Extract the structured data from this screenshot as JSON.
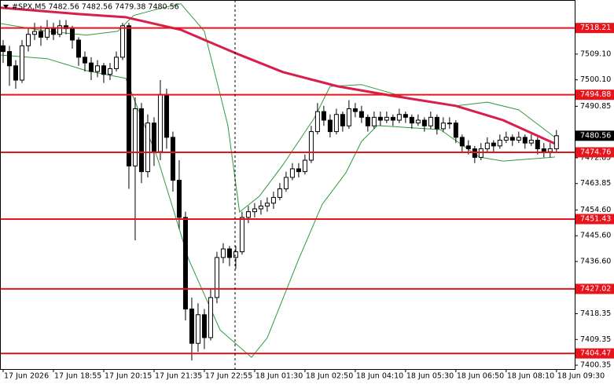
{
  "chart_data": {
    "type": "candlestick",
    "title": "#SPX,M5 7482.56 7482.56 7479.38 7480.56",
    "xlim": [
      -0.5,
      90.9
    ],
    "ylim": [
      7399,
      7528
    ],
    "xticks": [
      {
        "value": 0,
        "label": "17 Jun 2026"
      },
      {
        "value": 8,
        "label": "17 Jun 18:55"
      },
      {
        "value": 16,
        "label": "17 Jun 20:15"
      },
      {
        "value": 24,
        "label": "17 Jun 21:35"
      },
      {
        "value": 32,
        "label": "17 Jun 22:55"
      },
      {
        "value": 40,
        "label": "18 Jun 01:30"
      },
      {
        "value": 48,
        "label": "18 Jun 02:50"
      },
      {
        "value": 56,
        "label": "18 Jun 04:10"
      },
      {
        "value": 64,
        "label": "18 Jun 05:30"
      },
      {
        "value": 72,
        "label": "18 Jun 06:50"
      },
      {
        "value": 80,
        "label": "18 Jun 08:10"
      },
      {
        "value": 88,
        "label": "18 Jun 09:30"
      }
    ],
    "yticks": [
      {
        "value": 7509.1,
        "label": "7509.10"
      },
      {
        "value": 7500.1,
        "label": "7500.10"
      },
      7490.85,
      7472.85,
      7463.85,
      {
        "value": 7454.6,
        "label": "7454.60"
      },
      {
        "value": 7445.6,
        "label": "7445.60"
      },
      {
        "value": 7436.6,
        "label": "7436.60"
      },
      7418.35,
      7409.35,
      7400.35
    ],
    "levels": [
      7518.21,
      7494.88,
      7474.76,
      7451.43,
      7427.02,
      7404.47
    ],
    "level_color": "#e8141c",
    "last_price": 7480.56,
    "up_color": "#ffffff",
    "down_color": "#000000",
    "ohlc": [
      [
        7512,
        7514,
        7506,
        7510
      ],
      [
        7510,
        7512,
        7498,
        7505
      ],
      [
        7505,
        7507,
        7497,
        7500
      ],
      [
        7500,
        7514,
        7499,
        7512
      ],
      [
        7512,
        7518,
        7510,
        7516
      ],
      [
        7516,
        7520,
        7514,
        7517
      ],
      [
        7517,
        7519,
        7512,
        7515
      ],
      [
        7515,
        7521,
        7514,
        7518
      ],
      [
        7518,
        7520,
        7514,
        7516
      ],
      [
        7516,
        7521,
        7515,
        7519
      ],
      [
        7519,
        7521,
        7516,
        7518
      ],
      [
        7518,
        7519,
        7511,
        7514
      ],
      [
        7514,
        7515,
        7505,
        7508
      ],
      [
        7508,
        7510,
        7503,
        7506
      ],
      [
        7506,
        7508,
        7500,
        7503
      ],
      [
        7503,
        7507,
        7501,
        7505
      ],
      [
        7505,
        7506,
        7499,
        7502
      ],
      [
        7502,
        7506,
        7500,
        7504
      ],
      [
        7504,
        7510,
        7503,
        7508
      ],
      [
        7508,
        7520,
        7507,
        7519
      ],
      [
        7519,
        7520,
        7462,
        7470
      ],
      [
        7470,
        7494,
        7444,
        7490
      ],
      [
        7490,
        7492,
        7464,
        7468
      ],
      [
        7468,
        7488,
        7466,
        7485
      ],
      [
        7485,
        7487,
        7470,
        7475
      ],
      [
        7475,
        7500,
        7472,
        7495
      ],
      [
        7495,
        7497,
        7476,
        7480
      ],
      [
        7480,
        7482,
        7461,
        7465
      ],
      [
        7465,
        7472,
        7448,
        7452
      ],
      [
        7452,
        7454,
        7416,
        7420
      ],
      [
        7420,
        7424,
        7402,
        7408
      ],
      [
        7408,
        7422,
        7405,
        7418
      ],
      [
        7418,
        7420,
        7406,
        7410
      ],
      [
        7410,
        7427,
        7409,
        7424
      ],
      [
        7424,
        7440,
        7422,
        7438
      ],
      [
        7438,
        7443,
        7436,
        7441
      ],
      [
        7441,
        7442,
        7435,
        7438
      ],
      [
        7438,
        7442,
        7434,
        7440
      ],
      [
        7440,
        7454,
        7439,
        7452
      ],
      [
        7452,
        7456,
        7450,
        7454
      ],
      [
        7454,
        7457,
        7452,
        7455
      ],
      [
        7455,
        7458,
        7453,
        7456
      ],
      [
        7456,
        7459,
        7454,
        7457
      ],
      [
        7457,
        7461,
        7455,
        7459
      ],
      [
        7459,
        7464,
        7458,
        7462
      ],
      [
        7462,
        7468,
        7461,
        7466
      ],
      [
        7466,
        7471,
        7465,
        7469
      ],
      [
        7469,
        7471,
        7466,
        7468
      ],
      [
        7468,
        7474,
        7467,
        7472
      ],
      [
        7472,
        7484,
        7471,
        7482
      ],
      [
        7482,
        7492,
        7481,
        7489
      ],
      [
        7489,
        7491,
        7484,
        7486
      ],
      [
        7486,
        7488,
        7480,
        7482
      ],
      [
        7482,
        7490,
        7481,
        7488
      ],
      [
        7488,
        7489,
        7482,
        7484
      ],
      [
        7484,
        7493,
        7483,
        7490
      ],
      [
        7490,
        7492,
        7487,
        7489
      ],
      [
        7489,
        7491,
        7485,
        7487
      ],
      [
        7487,
        7488,
        7482,
        7484
      ],
      [
        7484,
        7489,
        7483,
        7487
      ],
      [
        7487,
        7489,
        7484,
        7486
      ],
      [
        7486,
        7489,
        7485,
        7487
      ],
      [
        7487,
        7488,
        7484,
        7486
      ],
      [
        7486,
        7490,
        7485,
        7488
      ],
      [
        7488,
        7489,
        7485,
        7487
      ],
      [
        7487,
        7488,
        7483,
        7485
      ],
      [
        7485,
        7488,
        7484,
        7486
      ],
      [
        7486,
        7487,
        7482,
        7484
      ],
      [
        7484,
        7489,
        7483,
        7487
      ],
      [
        7487,
        7488,
        7481,
        7483
      ],
      [
        7483,
        7487,
        7482,
        7485
      ],
      [
        7485,
        7487,
        7483,
        7485
      ],
      [
        7485,
        7486,
        7478,
        7480
      ],
      [
        7480,
        7481,
        7475,
        7477
      ],
      [
        7477,
        7479,
        7474,
        7476
      ],
      [
        7476,
        7477,
        7471,
        7473
      ],
      [
        7473,
        7478,
        7472,
        7476
      ],
      [
        7476,
        7480,
        7475,
        7478
      ],
      [
        7478,
        7479,
        7475,
        7477
      ],
      [
        7477,
        7481,
        7476,
        7479
      ],
      [
        7479,
        7482,
        7478,
        7480
      ],
      [
        7480,
        7481,
        7477,
        7479
      ],
      [
        7479,
        7482,
        7478,
        7480
      ],
      [
        7480,
        7481,
        7476,
        7478
      ],
      [
        7478,
        7481,
        7477,
        7479
      ],
      [
        7479,
        7480,
        7474,
        7476
      ],
      [
        7476,
        7478,
        7473,
        7475
      ],
      [
        7475,
        7478,
        7473,
        7476
      ],
      [
        7476,
        7482.56,
        7475,
        7480.56
      ]
    ],
    "overlays": [
      {
        "color": "#2e9a3c",
        "width": 1,
        "x": [
          -0.5,
          7,
          13.25,
          18.25,
          20.75,
          24.5,
          28.25,
          32,
          35.75,
          37.6,
          40.75,
          44.5,
          49.5,
          52,
          57,
          64.5,
          72,
          77,
          82,
          87.75
        ],
        "values": [
          7519.8,
          7517.1,
          7515.7,
          7517.1,
          7522.6,
          7524.8,
          7526.7,
          7517.1,
          7484.1,
          7453.9,
          7459.4,
          7470.4,
          7486.8,
          7497.8,
          7498.4,
          7493.7,
          7491.0,
          7492.3,
          7489.6,
          7480.0
        ]
      },
      {
        "color": "#2e9a3c",
        "width": 1,
        "x": [
          -0.5,
          7,
          13.25,
          19.5,
          24.5,
          29.5,
          34.5,
          39.5,
          42,
          47,
          50.75,
          54.5,
          57,
          59.5,
          69.5,
          75.75,
          79.5,
          87.75
        ],
        "values": [
          7508.8,
          7507.5,
          7503.3,
          7500.6,
          7473.1,
          7437.4,
          7412.7,
          7403.1,
          7409.9,
          7437.4,
          7456.6,
          7467.6,
          7478.6,
          7484.1,
          7482.7,
          7473.1,
          7471.7,
          7473.1
        ]
      },
      {
        "color": "#d81e4a",
        "width": 3,
        "x": [
          -0.5,
          12,
          19.5,
          28.25,
          37,
          44.5,
          53.25,
          62,
          72,
          79.5,
          87.75
        ],
        "values": [
          7525.3,
          7523.1,
          7522.0,
          7517.6,
          7509.4,
          7502.8,
          7497.8,
          7494.5,
          7491.0,
          7486.0,
          7477.8
        ]
      }
    ]
  }
}
